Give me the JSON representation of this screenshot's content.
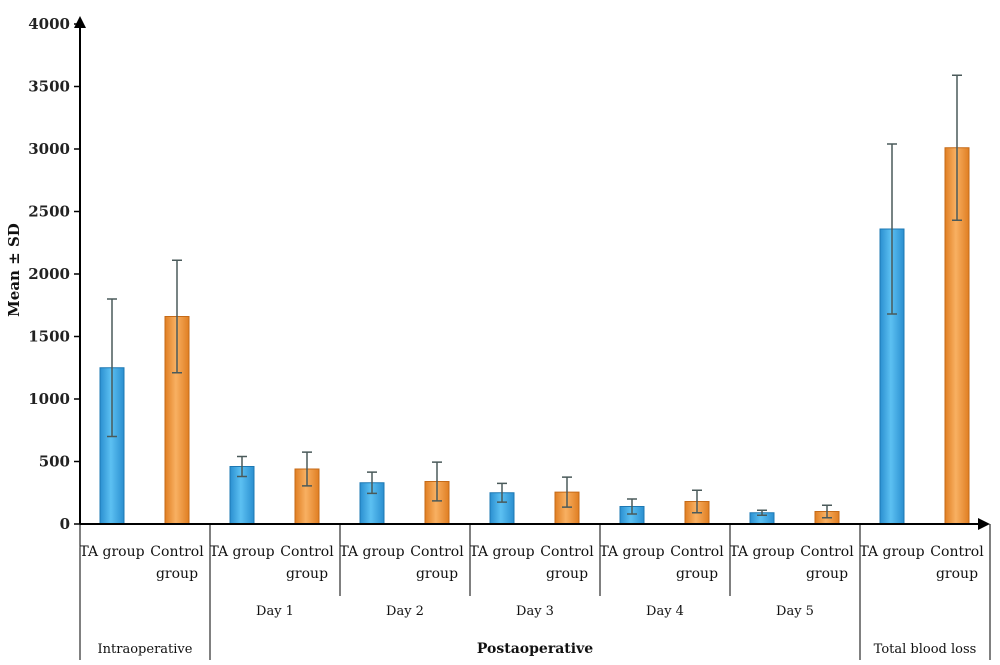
{
  "chart_data": {
    "type": "bar",
    "ylabel": "Mean ± SD",
    "ylim": [
      0,
      4000
    ],
    "yticks": [
      0,
      500,
      1000,
      1500,
      2000,
      2500,
      3000,
      3500,
      4000
    ],
    "grid": false,
    "colors": {
      "ta": "#3aa6e6",
      "control": "#f0973a",
      "error": "#4a5a5a"
    },
    "groups": [
      {
        "phase": "Intraoperative",
        "day": "",
        "bars": [
          {
            "label_lines": [
              "TA group"
            ],
            "series": "ta",
            "value": 1250,
            "sd": 550
          },
          {
            "label_lines": [
              "Control",
              "group"
            ],
            "series": "control",
            "value": 1660,
            "sd": 450
          }
        ]
      },
      {
        "phase": "Postaoperative",
        "day": "Day 1",
        "bars": [
          {
            "label_lines": [
              "TA group"
            ],
            "series": "ta",
            "value": 460,
            "sd": 80
          },
          {
            "label_lines": [
              "Control",
              "group"
            ],
            "series": "control",
            "value": 440,
            "sd": 135
          }
        ]
      },
      {
        "phase": "Postaoperative",
        "day": "Day 2",
        "bars": [
          {
            "label_lines": [
              "TA group"
            ],
            "series": "ta",
            "value": 330,
            "sd": 85
          },
          {
            "label_lines": [
              "Control",
              "group"
            ],
            "series": "control",
            "value": 340,
            "sd": 155
          }
        ]
      },
      {
        "phase": "Postaoperative",
        "day": "Day 3",
        "bars": [
          {
            "label_lines": [
              "TA group"
            ],
            "series": "ta",
            "value": 250,
            "sd": 75
          },
          {
            "label_lines": [
              "Control",
              "group"
            ],
            "series": "control",
            "value": 255,
            "sd": 120
          }
        ]
      },
      {
        "phase": "Postaoperative",
        "day": "Day 4",
        "bars": [
          {
            "label_lines": [
              "TA group"
            ],
            "series": "ta",
            "value": 140,
            "sd": 60
          },
          {
            "label_lines": [
              "Control",
              "group"
            ],
            "series": "control",
            "value": 180,
            "sd": 90
          }
        ]
      },
      {
        "phase": "Postaoperative",
        "day": "Day 5",
        "bars": [
          {
            "label_lines": [
              "TA group"
            ],
            "series": "ta",
            "value": 90,
            "sd": 20
          },
          {
            "label_lines": [
              "Control",
              "group"
            ],
            "series": "control",
            "value": 100,
            "sd": 50
          }
        ]
      },
      {
        "phase": "Total blood loss",
        "day": "",
        "bars": [
          {
            "label_lines": [
              "TA group"
            ],
            "series": "ta",
            "value": 2360,
            "sd": 680
          },
          {
            "label_lines": [
              "Control",
              "group"
            ],
            "series": "control",
            "value": 3010,
            "sd": 580
          }
        ]
      }
    ],
    "phases": [
      "Intraoperative",
      "Postaoperative",
      "Total blood loss"
    ],
    "phase_bold": [
      false,
      true,
      false
    ]
  }
}
